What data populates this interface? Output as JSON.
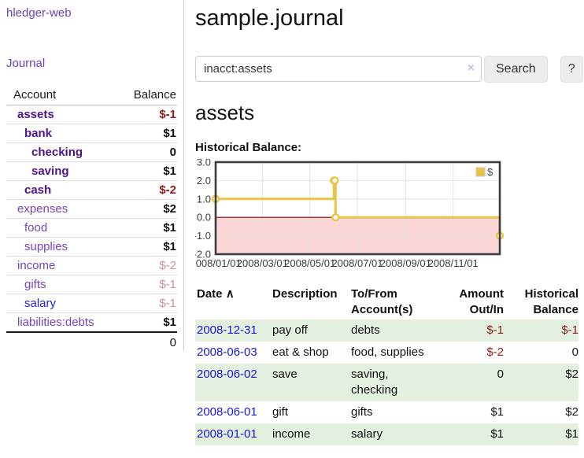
{
  "sidebar": {
    "app_title": "hledger-web",
    "journal_link": "Journal",
    "table": {
      "headers": {
        "account": "Account",
        "balance": "Balance"
      },
      "rows": [
        {
          "account": "assets",
          "level": 1,
          "emph": true,
          "unvisited": false,
          "balance": "$-1",
          "balance_style": "neg-strong"
        },
        {
          "account": "bank",
          "level": 2,
          "emph": true,
          "unvisited": false,
          "balance": "$1",
          "balance_style": "pos-strong"
        },
        {
          "account": "checking",
          "level": 3,
          "emph": true,
          "unvisited": false,
          "balance": "0",
          "balance_style": "pos-strong"
        },
        {
          "account": "saving",
          "level": 3,
          "emph": true,
          "unvisited": false,
          "balance": "$1",
          "balance_style": "pos-strong"
        },
        {
          "account": "cash",
          "level": 2,
          "emph": true,
          "unvisited": false,
          "balance": "$-2",
          "balance_style": "neg-strong"
        },
        {
          "account": "expenses",
          "level": 1,
          "emph": false,
          "unvisited": false,
          "balance": "$2",
          "balance_style": "pos-strong"
        },
        {
          "account": "food",
          "level": 2,
          "emph": false,
          "unvisited": false,
          "balance": "$1",
          "balance_style": "pos-strong"
        },
        {
          "account": "supplies",
          "level": 2,
          "emph": false,
          "unvisited": false,
          "balance": "$1",
          "balance_style": "pos-strong"
        },
        {
          "account": "income",
          "level": 1,
          "emph": false,
          "unvisited": false,
          "balance": "$-2",
          "balance_style": "neg-muted"
        },
        {
          "account": "gifts",
          "level": 2,
          "emph": false,
          "unvisited": false,
          "balance": "$-1",
          "balance_style": "neg-muted"
        },
        {
          "account": "salary",
          "level": 2,
          "emph": false,
          "unvisited": true,
          "balance": "$-1",
          "balance_style": "neg-muted"
        },
        {
          "account": "liabilities:debts",
          "level": 1,
          "emph": false,
          "unvisited": false,
          "balance": "$1",
          "balance_style": "pos-strong"
        }
      ],
      "total": "0"
    }
  },
  "main": {
    "title": "sample.journal",
    "search": {
      "value": "inacct:assets",
      "clear_icon": "×",
      "button": "Search",
      "help_button": "?"
    },
    "account_heading": "assets",
    "chart_heading": "Historical Balance:"
  },
  "chart_data": {
    "type": "line",
    "step": true,
    "title": "Historical Balance",
    "series": [
      {
        "name": "$",
        "color": "#e9c344",
        "points": [
          {
            "date": "2008-01-01",
            "value": 1
          },
          {
            "date": "2008-06-01",
            "value": 2
          },
          {
            "date": "2008-06-02",
            "value": 2
          },
          {
            "date": "2008-06-03",
            "value": 0
          },
          {
            "date": "2008-12-31",
            "value": -1
          }
        ]
      }
    ],
    "xlim": [
      "2008-01-01",
      "2008-12-31"
    ],
    "ylim": [
      -2,
      3
    ],
    "ytick_values": [
      3,
      2,
      1,
      0,
      -1,
      -2
    ],
    "ytick_labels": [
      "3.0",
      "2.0",
      "1.0",
      "0.0",
      "-1.0",
      "-2.0"
    ],
    "xticks": [
      {
        "date": "2008-01-01",
        "label": "2008/01/01"
      },
      {
        "date": "2008-03-01",
        "label": "2008/03/01"
      },
      {
        "date": "2008-05-01",
        "label": "2008/05/01"
      },
      {
        "date": "2008-07-01",
        "label": "2008/07/01"
      },
      {
        "date": "2008-09-01",
        "label": "2008/09/01"
      },
      {
        "date": "2008-11-01",
        "label": "2008/11/01"
      }
    ],
    "legend": {
      "label": "$",
      "position": "top-right",
      "swatch_color": "#e9c344"
    },
    "styles": {
      "negative_region_fill": "#fbd7d7",
      "zero_line_color": "#8b0000",
      "grid_color": "#e2e2e2",
      "border_color": "#3c3c3c",
      "marker_fill": "#ffffff",
      "tick_label_color": "#3a3a3a"
    }
  },
  "transactions": {
    "headers": {
      "date": "Date",
      "sort_indicator": "∧",
      "description": "Description",
      "tofrom_lines": [
        "To/From",
        "Account(s)"
      ],
      "amount_lines": [
        "Amount",
        "Out/In"
      ],
      "balance_lines": [
        "Historical",
        "Balance"
      ]
    },
    "rows": [
      {
        "date": "2008-12-31",
        "description": "pay off",
        "accounts_lines": [
          "debts"
        ],
        "amount": "$-1",
        "amount_negative": true,
        "balance": "$-1",
        "balance_negative": true,
        "stripe": true
      },
      {
        "date": "2008-06-03",
        "description": "eat & shop",
        "accounts_lines": [
          "food, supplies"
        ],
        "amount": "$-2",
        "amount_negative": true,
        "balance": "0",
        "balance_negative": false,
        "stripe": false
      },
      {
        "date": "2008-06-02",
        "description": "save",
        "accounts_lines": [
          "saving,",
          "checking"
        ],
        "amount": "0",
        "amount_negative": false,
        "balance": "$2",
        "balance_negative": false,
        "stripe": true
      },
      {
        "date": "2008-06-01",
        "description": "gift",
        "accounts_lines": [
          "gifts"
        ],
        "amount": "$1",
        "amount_negative": false,
        "balance": "$2",
        "balance_negative": false,
        "stripe": false
      },
      {
        "date": "2008-01-01",
        "description": "income",
        "accounts_lines": [
          "salary"
        ],
        "amount": "$1",
        "amount_negative": false,
        "balance": "$1",
        "balance_negative": false,
        "stripe": true
      }
    ]
  }
}
